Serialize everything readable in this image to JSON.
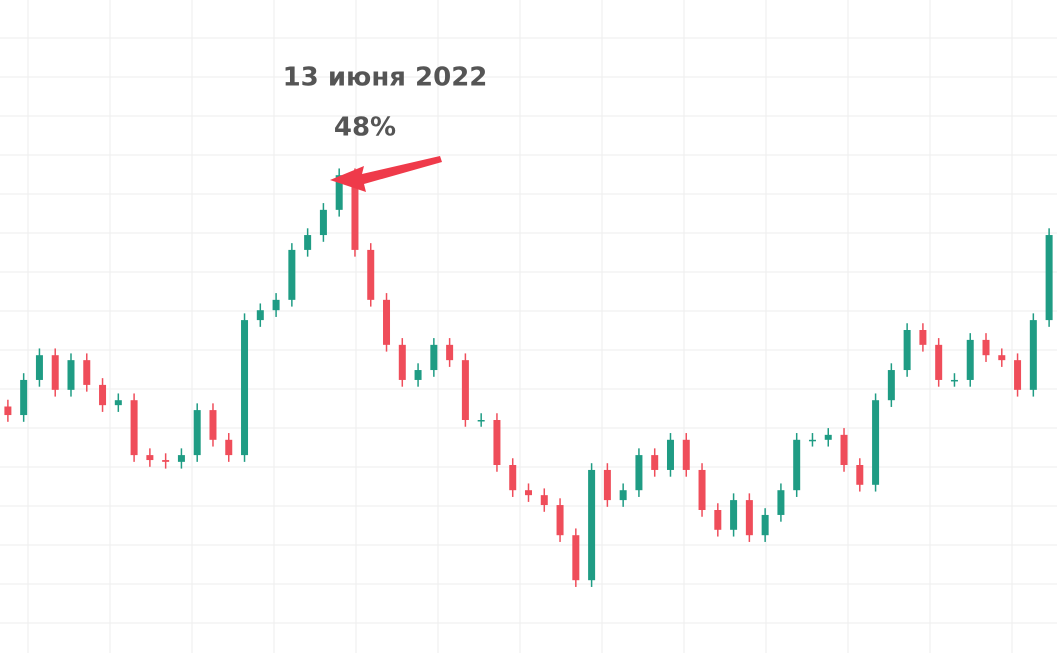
{
  "chart_data": {
    "type": "candlestick",
    "annotation": {
      "date": "13 июня 2022",
      "change": "48%"
    },
    "up_color": "#1f9c84",
    "down_color": "#ef4d5a",
    "grid": true,
    "ylim": [
      0,
      100
    ],
    "open": [
      43,
      41.1,
      48.9,
      54.4,
      46.7,
      53.3,
      47.8,
      43.3,
      44.4,
      32.2,
      31.1,
      30.7,
      32.2,
      42.2,
      35.6,
      32.2,
      62.2,
      64.4,
      66.7,
      77.8,
      81.1,
      86.7,
      94.4,
      77.8,
      66.7,
      56.7,
      48.9,
      51.1,
      56.7,
      53.3,
      40,
      40,
      30,
      24.4,
      23.3,
      21.1,
      14.4,
      4.4,
      28.9,
      22.2,
      24.4,
      32.2,
      28.9,
      35.6,
      28.9,
      20,
      15.6,
      22.2,
      14.4,
      18.9,
      24.4,
      35.6,
      35.6,
      36.7,
      30,
      25.6,
      44.4,
      51.1,
      60,
      56.7,
      48.9,
      48.9,
      57.8,
      54.4,
      53.3,
      46.7,
      62.2
    ],
    "high": [
      44.5,
      50.4,
      55.9,
      55.9,
      54.8,
      54.8,
      49.3,
      45.9,
      45.9,
      33.7,
      32.6,
      33.7,
      43.7,
      43.7,
      37.1,
      63.7,
      65.9,
      68.2,
      79.3,
      82.6,
      88.2,
      95.9,
      95.9,
      79.3,
      68.2,
      58.2,
      52.6,
      58.2,
      58.2,
      54.8,
      41.5,
      41.5,
      31.5,
      25.9,
      24.8,
      22.6,
      15.9,
      30.4,
      30.4,
      25.9,
      33.7,
      33.7,
      37.1,
      37.1,
      30.4,
      21.5,
      23.7,
      23.7,
      20.4,
      25.9,
      37.1,
      37.1,
      38.2,
      38.2,
      31.5,
      45.9,
      52.6,
      61.5,
      61.5,
      58.2,
      50.4,
      59.3,
      59.3,
      55.9,
      54.8,
      63.7,
      82.6
    ],
    "low": [
      39.6,
      39.6,
      47.4,
      45.2,
      45.2,
      46.3,
      41.8,
      41.8,
      30.7,
      29.6,
      29.2,
      29.2,
      30.7,
      34.1,
      30.7,
      30.7,
      60.7,
      62.9,
      65.2,
      76.3,
      79.6,
      85.2,
      76.3,
      65.2,
      55.2,
      47.4,
      47.4,
      49.6,
      51.8,
      38.5,
      38.5,
      28.5,
      22.9,
      21.8,
      19.6,
      12.9,
      2.9,
      2.9,
      20.7,
      20.7,
      22.9,
      27.4,
      27.4,
      27.4,
      18.5,
      14.1,
      14.1,
      12.9,
      12.9,
      17.4,
      22.9,
      34.1,
      34.1,
      28.5,
      24.1,
      24.1,
      42.9,
      49.6,
      55.2,
      47.4,
      47.4,
      47.4,
      52.9,
      51.8,
      45.2,
      45.2,
      60.7
    ],
    "close": [
      41.1,
      48.9,
      54.4,
      46.7,
      53.3,
      47.8,
      43.3,
      44.4,
      32.2,
      31.1,
      30.7,
      32.2,
      42.2,
      35.6,
      32.2,
      62.2,
      64.4,
      66.7,
      77.8,
      81.1,
      86.7,
      94.4,
      77.8,
      66.7,
      56.7,
      48.9,
      51.1,
      56.7,
      53.3,
      40,
      40,
      30,
      24.4,
      23.3,
      21.1,
      14.4,
      4.4,
      28.9,
      22.2,
      24.4,
      32.2,
      28.9,
      35.6,
      28.9,
      20,
      15.6,
      22.2,
      14.4,
      18.9,
      24.4,
      35.6,
      35.6,
      36.7,
      30,
      25.6,
      44.4,
      51.1,
      60,
      56.7,
      48.9,
      48.9,
      57.8,
      54.4,
      53.3,
      46.7,
      62.2,
      81.1
    ]
  }
}
